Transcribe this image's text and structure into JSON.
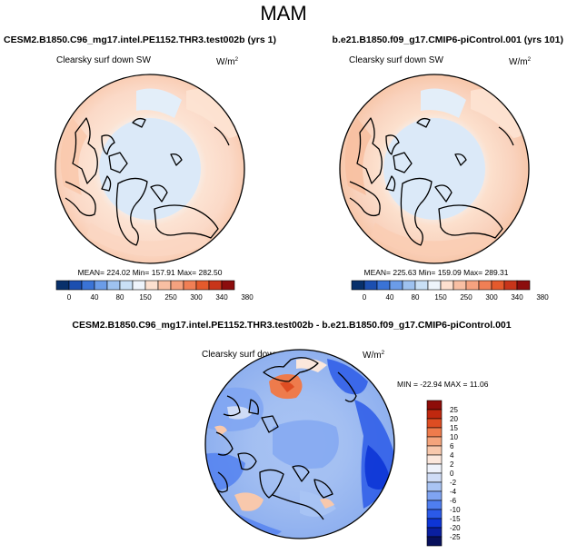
{
  "chart_data": {
    "type": "map",
    "season": "MAM",
    "variable": "Clearsky surf down SW",
    "units_base": "W/m",
    "units_exp": "2",
    "colors": {
      "abs_scale": [
        "#08306b",
        "#1c4fb0",
        "#3a73d6",
        "#6b9ce8",
        "#9ec2f0",
        "#c9e0f6",
        "#eef4fb",
        "#fde0cf",
        "#f8bfa3",
        "#f5a27f",
        "#f07f55",
        "#e45a2c",
        "#c8351a",
        "#8c0d0d"
      ],
      "diff_scale": [
        "#08105c",
        "#0a1fa0",
        "#0d35d6",
        "#2b5ae8",
        "#4f7ef0",
        "#7fa4f2",
        "#a9c4f4",
        "#cfdcf6",
        "#eef2fb",
        "#fbe7dc",
        "#f8c8ac",
        "#f4a47c",
        "#ee7b4c",
        "#de4d22",
        "#c0280f",
        "#8e0c08"
      ],
      "land_outline": "#000000",
      "map_border": "#000000"
    },
    "panels": [
      {
        "title": "CESM2.B1850.C96_mg17.intel.PE1152.THR3.test002b (yrs 1)",
        "stats": "MEAN= 224.02  Min= 157.91  Max= 282.50",
        "mean": 224.02,
        "min": 157.91,
        "max": 282.5,
        "colorbar_labels": [
          "0",
          "40",
          "80",
          "150",
          "250",
          "300",
          "340",
          "380"
        ]
      },
      {
        "title": "b.e21.B1850.f09_g17.CMIP6-piControl.001 (yrs 101)",
        "stats": "MEAN= 225.63  Min= 159.09  Max= 289.31",
        "mean": 225.63,
        "min": 159.09,
        "max": 289.31,
        "colorbar_labels": [
          "0",
          "40",
          "80",
          "150",
          "250",
          "300",
          "340",
          "380"
        ]
      },
      {
        "title": "CESM2.B1850.C96_mg17.intel.PE1152.THR3.test002b - b.e21.B1850.f09_g17.CMIP6-piControl.001",
        "stats": "MIN = -22.94 MAX = 11.06",
        "min": -22.94,
        "max": 11.06,
        "colorbar_labels": [
          "25",
          "20",
          "15",
          "10",
          "6",
          "4",
          "2",
          "0",
          "-2",
          "-4",
          "-6",
          "-10",
          "-15",
          "-20",
          "-25"
        ]
      }
    ]
  }
}
